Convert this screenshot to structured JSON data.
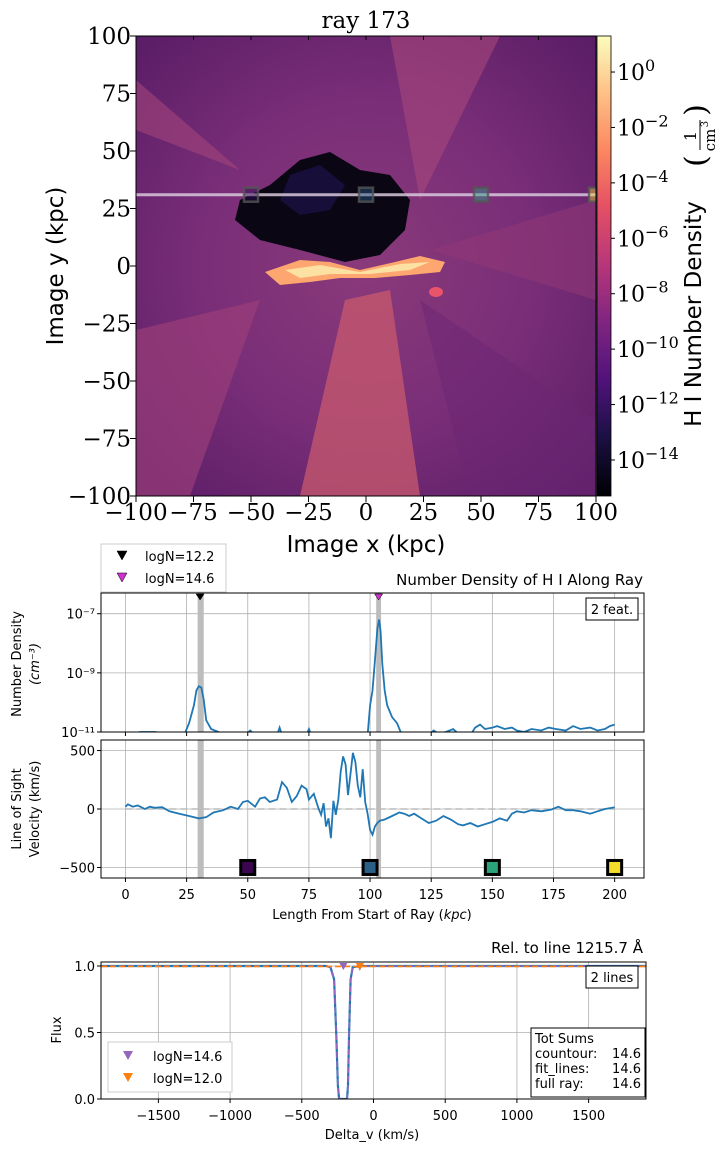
{
  "figure": {
    "title": "ray 173"
  },
  "chart_data": [
    {
      "type": "heatmap",
      "title": "ray 173",
      "xlabel": "Image x  (kpc)",
      "ylabel": "Image y  (kpc)",
      "xlim": [
        -100,
        100
      ],
      "ylim": [
        -100,
        100
      ],
      "xticks": [
        -100,
        -75,
        -50,
        -25,
        0,
        25,
        50,
        75,
        100
      ],
      "yticks": [
        100,
        75,
        50,
        25,
        0,
        -25,
        -50,
        -75,
        -100
      ],
      "xtick_labels": [
        "−100",
        "−75",
        "−50",
        "−25",
        "0",
        "25",
        "50",
        "75",
        "100"
      ],
      "ytick_labels": [
        "100",
        "75",
        "50",
        "25",
        "0",
        "−25",
        "−50",
        "−75",
        "−100"
      ],
      "colorbar": {
        "label": "H I Number Density",
        "unit_num": "1",
        "unit_den": "cm",
        "unit_den_exp": "3",
        "colormap": "magma",
        "scale": "log",
        "tick_exponents": [
          "0",
          "−2",
          "−4",
          "−6",
          "−8",
          "−10",
          "−12",
          "−14"
        ],
        "tick_values": [
          0,
          -2,
          -4,
          -6,
          -8,
          -10,
          -12,
          -14
        ],
        "log_range": [
          -15.3,
          1.3
        ]
      },
      "ray": {
        "y": 31,
        "x_start": -100,
        "x_end": 100
      },
      "ray_markers": [
        {
          "x": -50,
          "y": 31,
          "color": "#2d0b4f"
        },
        {
          "x": 0,
          "y": 31,
          "color": "#2a5b86"
        },
        {
          "x": 50,
          "y": 31,
          "color": "#2b9b82"
        },
        {
          "x": 100,
          "y": 31,
          "color": "#f2d633"
        }
      ]
    },
    {
      "type": "line",
      "title": "Number Density of H I Along Ray",
      "ylabel_line1": "Number Density",
      "ylabel_line2": "(cm⁻³)",
      "yscale": "log",
      "ylim_exp": [
        -11,
        -6.3
      ],
      "yticks_exp": [
        -7,
        -9,
        -11
      ],
      "ytick_labels": [
        "10⁻⁷",
        "10⁻⁹",
        "10⁻¹¹"
      ],
      "xlim": [
        -10,
        212
      ],
      "annotation": "2 feat.",
      "legend": [
        {
          "label": "logN=12.2",
          "color": "#000000"
        },
        {
          "label": "logN=14.6",
          "color": "#cc33cc"
        }
      ],
      "feature_bands": [
        [
          29.5,
          32
        ],
        [
          102.5,
          104.5
        ]
      ],
      "feature_markers": [
        {
          "x": 30.5,
          "color": "#000000"
        },
        {
          "x": 103.5,
          "color": "#cc33cc"
        }
      ],
      "series": [
        {
          "color": "#1f77b4",
          "segments": [
            [
              [
                0,
                -11.1
              ],
              [
                6,
                -11.0
              ],
              [
                12,
                -11.0
              ],
              [
                17,
                -11.05
              ],
              [
                20,
                -11.1
              ]
            ],
            [
              [
                24,
                -11.1
              ],
              [
                26,
                -10.7
              ],
              [
                28,
                -10.1
              ],
              [
                29,
                -9.6
              ],
              [
                30,
                -9.45
              ],
              [
                31,
                -9.5
              ],
              [
                32,
                -9.9
              ],
              [
                33,
                -10.6
              ],
              [
                35,
                -10.9
              ],
              [
                38,
                -11.0
              ],
              [
                41,
                -11.1
              ]
            ],
            [
              [
                49,
                -11.1
              ],
              [
                51,
                -10.95
              ],
              [
                53,
                -11.1
              ]
            ],
            [
              [
                62,
                -11.1
              ],
              [
                63,
                -10.85
              ],
              [
                64,
                -11.1
              ]
            ],
            [
              [
                74,
                -11.1
              ],
              [
                75,
                -10.9
              ],
              [
                76,
                -11.1
              ]
            ],
            [
              [
                99,
                -11.1
              ],
              [
                100,
                -10.1
              ],
              [
                101,
                -9.6
              ],
              [
                102,
                -8.6
              ],
              [
                103,
                -7.5
              ],
              [
                103.7,
                -7.2
              ],
              [
                104.3,
                -7.6
              ],
              [
                105,
                -8.7
              ],
              [
                106,
                -9.6
              ],
              [
                107,
                -10.1
              ],
              [
                109,
                -10.5
              ],
              [
                111,
                -10.7
              ],
              [
                113,
                -11.1
              ]
            ],
            [
              [
                124,
                -11.1
              ],
              [
                126,
                -10.95
              ],
              [
                128,
                -11.05
              ],
              [
                131,
                -11.0
              ],
              [
                134,
                -10.9
              ],
              [
                136,
                -11.05
              ],
              [
                139,
                -11.1
              ]
            ],
            [
              [
                141,
                -11.1
              ],
              [
                143,
                -10.85
              ],
              [
                145,
                -10.75
              ],
              [
                147,
                -10.9
              ],
              [
                150,
                -10.85
              ],
              [
                152,
                -10.8
              ],
              [
                155,
                -10.9
              ],
              [
                158,
                -10.85
              ],
              [
                160,
                -10.95
              ],
              [
                163,
                -11.0
              ],
              [
                166,
                -10.9
              ],
              [
                170,
                -10.95
              ],
              [
                173,
                -10.85
              ],
              [
                176,
                -10.9
              ],
              [
                180,
                -10.95
              ],
              [
                183,
                -10.8
              ],
              [
                186,
                -10.9
              ],
              [
                190,
                -10.85
              ],
              [
                193,
                -10.95
              ],
              [
                196,
                -10.9
              ],
              [
                198,
                -10.8
              ],
              [
                200,
                -10.75
              ]
            ]
          ]
        }
      ]
    },
    {
      "type": "line",
      "xlabel": "Length From Start of Ray (kpc)",
      "ylabel_line1": "Line of Sight",
      "ylabel_line2": "Velocity (km/s)",
      "xlim": [
        -10,
        212
      ],
      "ylim": [
        -590,
        590
      ],
      "xticks": [
        0,
        25,
        50,
        75,
        100,
        125,
        150,
        175,
        200
      ],
      "yticks": [
        500,
        0,
        -500
      ],
      "ytick_labels": [
        "500",
        "0",
        "−500"
      ],
      "zero_line": 0,
      "feature_bands": [
        [
          29.5,
          32
        ],
        [
          102.5,
          104.5
        ]
      ],
      "ray_markers": [
        {
          "x": 50,
          "y": -500,
          "color": "#3c0550"
        },
        {
          "x": 100,
          "y": -500,
          "color": "#2a5f86"
        },
        {
          "x": 150,
          "y": -500,
          "color": "#2aa37a"
        },
        {
          "x": 200,
          "y": -500,
          "color": "#f5dd2a"
        }
      ],
      "series": [
        {
          "color": "#1f77b4",
          "points": [
            [
              0,
              20
            ],
            [
              1,
              40
            ],
            [
              3,
              20
            ],
            [
              5,
              30
            ],
            [
              8,
              0
            ],
            [
              10,
              20
            ],
            [
              12,
              10
            ],
            [
              15,
              15
            ],
            [
              18,
              -20
            ],
            [
              22,
              -40
            ],
            [
              26,
              -60
            ],
            [
              30,
              -80
            ],
            [
              33,
              -70
            ],
            [
              36,
              -30
            ],
            [
              40,
              -10
            ],
            [
              43,
              20
            ],
            [
              46,
              0
            ],
            [
              48,
              60
            ],
            [
              50,
              70
            ],
            [
              53,
              20
            ],
            [
              55,
              90
            ],
            [
              57,
              100
            ],
            [
              59,
              60
            ],
            [
              62,
              80
            ],
            [
              64,
              230
            ],
            [
              66,
              180
            ],
            [
              68,
              60
            ],
            [
              70,
              110
            ],
            [
              72,
              200
            ],
            [
              74,
              170
            ],
            [
              75,
              80
            ],
            [
              77,
              130
            ],
            [
              79,
              0
            ],
            [
              80,
              -50
            ],
            [
              81,
              50
            ],
            [
              82,
              -150
            ],
            [
              83,
              -80
            ],
            [
              84,
              -250
            ],
            [
              85,
              70
            ],
            [
              86,
              -50
            ],
            [
              87,
              80
            ],
            [
              88,
              320
            ],
            [
              89,
              450
            ],
            [
              90,
              380
            ],
            [
              91,
              120
            ],
            [
              92,
              300
            ],
            [
              93,
              480
            ],
            [
              94,
              400
            ],
            [
              95,
              200
            ],
            [
              96,
              100
            ],
            [
              97,
              340
            ],
            [
              98,
              60
            ],
            [
              99,
              -40
            ],
            [
              100,
              -180
            ],
            [
              101,
              -220
            ],
            [
              102,
              -150
            ],
            [
              103,
              -120
            ],
            [
              104,
              -100
            ],
            [
              106,
              -90
            ],
            [
              109,
              -60
            ],
            [
              112,
              -30
            ],
            [
              114,
              -40
            ],
            [
              116,
              -60
            ],
            [
              118,
              -40
            ],
            [
              121,
              -80
            ],
            [
              124,
              -120
            ],
            [
              127,
              -100
            ],
            [
              130,
              -60
            ],
            [
              133,
              -90
            ],
            [
              136,
              -130
            ],
            [
              138,
              -140
            ],
            [
              141,
              -120
            ],
            [
              144,
              -150
            ],
            [
              147,
              -130
            ],
            [
              150,
              -110
            ],
            [
              153,
              -80
            ],
            [
              156,
              -100
            ],
            [
              158,
              -40
            ],
            [
              160,
              -20
            ],
            [
              163,
              -30
            ],
            [
              166,
              -10
            ],
            [
              170,
              -20
            ],
            [
              174,
              -5
            ],
            [
              177,
              20
            ],
            [
              180,
              -10
            ],
            [
              183,
              -10
            ],
            [
              186,
              -20
            ],
            [
              190,
              -40
            ],
            [
              193,
              -20
            ],
            [
              196,
              0
            ],
            [
              199,
              10
            ],
            [
              200,
              15
            ]
          ]
        }
      ]
    },
    {
      "type": "line",
      "title": "Rel. to line 1215.7 Å",
      "xlabel": "Delta_v (km/s)",
      "ylabel": "Flux",
      "xlim": [
        -1900,
        1900
      ],
      "ylim": [
        0,
        1.03
      ],
      "xticks": [
        -1500,
        -1000,
        -500,
        0,
        500,
        1000,
        1500
      ],
      "xtick_labels": [
        "−1500",
        "−1000",
        "−500",
        "0",
        "500",
        "1000",
        "1500"
      ],
      "yticks": [
        1.0,
        0.5,
        0.0
      ],
      "ytick_labels": [
        "1.0",
        "0.5",
        "0.0"
      ],
      "annotation": "2 lines",
      "tot_sums": {
        "header": "Tot Sums",
        "rows": [
          {
            "label": "countour:",
            "value": "14.6"
          },
          {
            "label": "fit_lines:",
            "value": "14.6"
          },
          {
            "label": "full ray:",
            "value": "14.6"
          }
        ]
      },
      "legend": [
        {
          "label": "logN=14.6",
          "color": "#9467bd"
        },
        {
          "label": "logN=12.0",
          "color": "#ff7f0e"
        }
      ],
      "line_markers": [
        {
          "x": -210,
          "color": "#9467bd"
        },
        {
          "x": -95,
          "color": "#ff7f0e"
        }
      ],
      "series": [
        {
          "name": "flux",
          "color": "#1f77b4",
          "style": "solid",
          "points": [
            [
              -1900,
              1.0
            ],
            [
              -330,
              1.0
            ],
            [
              -300,
              0.99
            ],
            [
              -275,
              0.9
            ],
            [
              -260,
              0.5
            ],
            [
              -248,
              0.1
            ],
            [
              -240,
              0.0
            ],
            [
              -185,
              0.0
            ],
            [
              -178,
              0.1
            ],
            [
              -170,
              0.5
            ],
            [
              -160,
              0.9
            ],
            [
              -145,
              0.99
            ],
            [
              -100,
              1.0
            ],
            [
              -95,
              0.985
            ],
            [
              -88,
              1.0
            ],
            [
              1900,
              1.0
            ]
          ]
        },
        {
          "name": "fit",
          "color": "#9467bd",
          "style": "dashed",
          "points": [
            [
              -1900,
              1.0
            ],
            [
              -330,
              1.0
            ],
            [
              -300,
              0.99
            ],
            [
              -275,
              0.9
            ],
            [
              -260,
              0.5
            ],
            [
              -248,
              0.1
            ],
            [
              -240,
              0.0
            ],
            [
              -185,
              0.0
            ],
            [
              -178,
              0.1
            ],
            [
              -170,
              0.5
            ],
            [
              -160,
              0.9
            ],
            [
              -145,
              0.99
            ],
            [
              -110,
              1.0
            ],
            [
              1900,
              1.0
            ]
          ]
        },
        {
          "name": "fit2",
          "color": "#ff7f0e",
          "style": "dashed",
          "points": [
            [
              -1900,
              0.997
            ],
            [
              -120,
              0.997
            ],
            [
              -100,
              0.985
            ],
            [
              -88,
              0.997
            ],
            [
              1900,
              0.997
            ]
          ]
        }
      ]
    }
  ]
}
